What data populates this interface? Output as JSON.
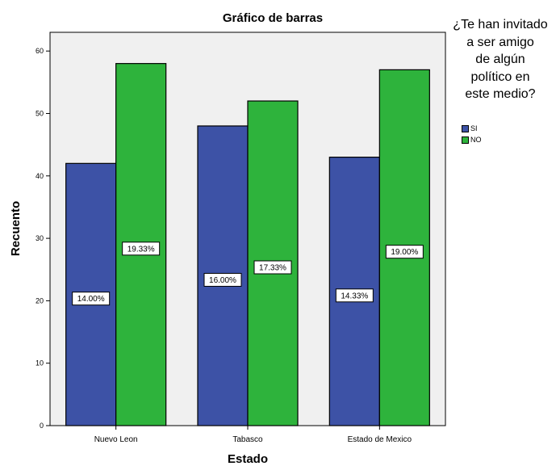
{
  "chart_data": {
    "type": "bar",
    "title": "Gráfico de barras",
    "xlabel": "Estado",
    "ylabel": "Recuento",
    "categories": [
      "Nuevo Leon",
      "Tabasco",
      "Estado de Mexico"
    ],
    "series": [
      {
        "name": "SI",
        "color": "#3d52a6",
        "values": [
          42,
          48,
          43
        ],
        "labels": [
          "14.00%",
          "16.00%",
          "14.33%"
        ]
      },
      {
        "name": "NO",
        "color": "#2eb33c",
        "values": [
          58,
          52,
          57
        ],
        "labels": [
          "19.33%",
          "17.33%",
          "19.00%"
        ]
      }
    ],
    "ylim": [
      0,
      63
    ],
    "yticks": [
      0,
      10,
      20,
      30,
      40,
      50,
      60
    ],
    "plot_background": "#f0f0f0",
    "grid": false,
    "legend": {
      "title_lines": [
        "¿Te han invitado",
        "a ser amigo",
        "de algún",
        "político en",
        "este medio?"
      ],
      "placement": "right"
    }
  }
}
